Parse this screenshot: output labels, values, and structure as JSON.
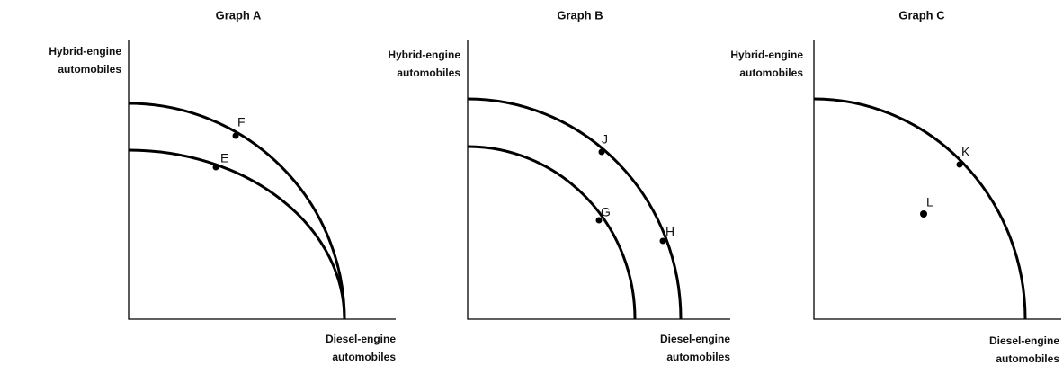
{
  "graphs": [
    {
      "title": "Graph A",
      "y_axis_label": [
        "Hybrid-engine",
        "automobiles"
      ],
      "x_axis_label": [
        "Diesel-engine",
        "automobiles"
      ],
      "points": [
        "F",
        "E"
      ]
    },
    {
      "title": "Graph B",
      "y_axis_label": [
        "Hybrid-engine",
        "automobiles"
      ],
      "x_axis_label": [
        "Diesel-engine",
        "automobiles"
      ],
      "points": [
        "J",
        "G",
        "H"
      ]
    },
    {
      "title": "Graph C",
      "y_axis_label": [
        "Hybrid-engine",
        "automobiles"
      ],
      "x_axis_label": [
        "Diesel-engine",
        "automobiles"
      ],
      "points": [
        "K",
        "L"
      ]
    }
  ]
}
